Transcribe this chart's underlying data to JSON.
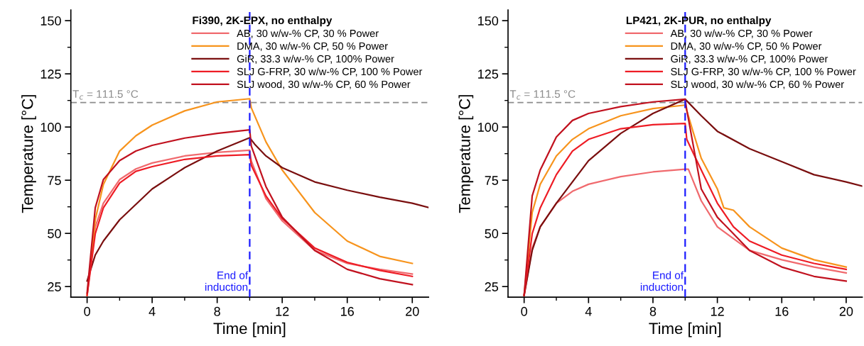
{
  "chart_data": [
    {
      "type": "line",
      "legend_title": "Fi390, 2K-EPX, no enthalpy",
      "xlabel": "Time [min]",
      "ylabel": "Temperature [°C]",
      "xlim": [
        -1,
        21
      ],
      "ylim": [
        20,
        155
      ],
      "xticks": [
        0,
        4,
        8,
        12,
        16,
        20
      ],
      "yticks": [
        25,
        50,
        75,
        100,
        125,
        150
      ],
      "legend": "top right",
      "grid": false,
      "x": [
        0,
        0.5,
        1,
        2,
        3,
        4,
        6,
        8,
        10,
        10.1,
        11,
        12,
        14,
        16,
        18,
        20
      ],
      "series": [
        {
          "name": "AB, 30 w/w-% CP, 30 % Power",
          "color": "#f06a6e",
          "values": [
            20.9,
            53,
            64.2,
            75.3,
            80.3,
            83.1,
            86.4,
            88.1,
            89.1,
            84,
            66.4,
            55.9,
            42,
            35.9,
            33.1,
            30.9
          ]
        },
        {
          "name": "DMA, 30 w/w-% CP, 50 % Power",
          "color": "#f7941d",
          "values": [
            20.9,
            56.4,
            73,
            88.7,
            95.9,
            100.9,
            107.6,
            111.8,
            113.3,
            109,
            93,
            79.8,
            59.8,
            46.4,
            39.2,
            35.9
          ]
        },
        {
          "name": "GiR, 33.3 w/w-% CP, 100% Power",
          "color": "#7a0f0f",
          "x": [
            0,
            0.5,
            1,
            2,
            4,
            6,
            8,
            10,
            10.3,
            11,
            12,
            14,
            16,
            18,
            20,
            21
          ],
          "values": [
            27.6,
            39.8,
            46.4,
            56.4,
            70.9,
            80.9,
            88.7,
            95,
            92,
            86.4,
            80.9,
            74.2,
            70.3,
            67,
            64.2,
            62.2
          ]
        },
        {
          "name": "SLJ G-FRP, 30 w/w-% CP, 100 % Power",
          "color": "#ee1c25",
          "values": [
            20.9,
            49.8,
            62,
            73.7,
            79.2,
            81.4,
            84.8,
            86.4,
            87,
            82,
            67.6,
            57,
            43.1,
            36.4,
            32.6,
            29.8
          ]
        },
        {
          "name": "SLJ wood, 30 w/w-% CP, 60 % Power",
          "color": "#c1121f",
          "values": [
            22,
            62,
            75.3,
            84.2,
            88.7,
            91.4,
            94.8,
            97,
            98.7,
            91,
            72,
            57.6,
            42,
            33.1,
            28.7,
            25.9
          ]
        }
      ],
      "ref_lines": [
        {
          "axis": "y",
          "value": 111.5,
          "label": "T$_{c}$ = 111.5 °C",
          "color": "#8c8c8c",
          "line_style": "dashed"
        },
        {
          "axis": "x",
          "value": 10,
          "label": "End of\ninduction",
          "color": "#1a1aff",
          "line_style": "dashed"
        }
      ]
    },
    {
      "type": "line",
      "legend_title": "LP421, 2K-PUR, no enthalpy",
      "xlabel": "Time [min]",
      "ylabel": "Temperature [°C]",
      "xlim": [
        -1,
        21
      ],
      "ylim": [
        20,
        155
      ],
      "xticks": [
        0,
        4,
        8,
        12,
        16,
        20
      ],
      "yticks": [
        25,
        50,
        75,
        100,
        125,
        150
      ],
      "legend": "top right",
      "grid": false,
      "x": [
        0,
        0.5,
        1,
        2,
        3,
        4,
        6,
        8,
        10,
        10.1,
        11,
        12,
        13,
        14,
        16,
        18,
        20
      ],
      "series": [
        {
          "name": "AB, 30 w/w-% CP, 30 % Power",
          "color": "#f06a6e",
          "x": [
            0,
            0.5,
            1,
            2,
            3,
            4,
            6,
            8,
            10,
            10.2,
            11,
            12,
            14,
            16,
            18,
            20
          ],
          "values": [
            20.9,
            43.1,
            53.1,
            64.2,
            69.8,
            73.1,
            76.7,
            78.9,
            80.2,
            80.2,
            65.3,
            53.1,
            42,
            37.6,
            34.2,
            31.4
          ]
        },
        {
          "name": "DMA, 30 w/w-% CP, 50 % Power",
          "color": "#f7941d",
          "x": [
            0,
            0.5,
            1,
            2,
            3,
            4,
            6,
            8,
            10,
            10.5,
            11,
            12,
            12.4,
            13,
            14,
            16,
            18,
            20
          ],
          "values": [
            20.9,
            59.8,
            73.1,
            86.4,
            94.2,
            99.2,
            105.3,
            108.7,
            110.3,
            97.6,
            85.3,
            70.9,
            62,
            60.9,
            53.1,
            43.1,
            37.6,
            34.2
          ]
        },
        {
          "name": "GiR, 33.3 w/w-% CP, 100% Power",
          "color": "#7a0f0f",
          "x": [
            0,
            0.5,
            1,
            2,
            4,
            6,
            8,
            10,
            11,
            12,
            14,
            16,
            18,
            20,
            21
          ],
          "values": [
            20.9,
            42,
            53.1,
            64.2,
            84.2,
            97,
            106.4,
            113.1,
            105.3,
            98,
            89.8,
            83.7,
            77.6,
            74.2,
            72.2
          ]
        },
        {
          "name": "SLJ G-FRP, 30 w/w-% CP, 100 % Power",
          "color": "#ee1c25",
          "values": [
            20.9,
            49.8,
            62,
            77.6,
            88.7,
            94.2,
            99.2,
            101.1,
            101.7,
            94.2,
            79.8,
            64.2,
            53.1,
            46.4,
            39.8,
            35.9,
            33.1
          ]
        },
        {
          "name": "SLJ wood, 30 w/w-% CP, 60 % Power",
          "color": "#c1121f",
          "values": [
            20.9,
            67.6,
            79.8,
            95.3,
            103.1,
            106.4,
            109.6,
            111.8,
            113.1,
            108,
            70.9,
            57.6,
            49.8,
            42,
            34.2,
            29.8,
            27.6
          ]
        }
      ],
      "ref_lines": [
        {
          "axis": "y",
          "value": 111.5,
          "label": "T$_{c}$ = 111.5 °C",
          "color": "#8c8c8c",
          "line_style": "dashed"
        },
        {
          "axis": "x",
          "value": 10,
          "label": "End of\ninduction",
          "color": "#1a1aff",
          "line_style": "dashed"
        }
      ]
    }
  ]
}
